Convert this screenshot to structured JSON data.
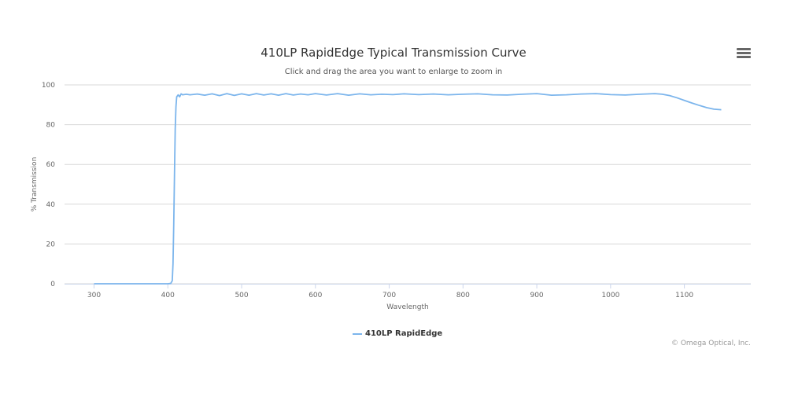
{
  "chart_data": {
    "type": "line",
    "title": "410LP RapidEdge Typical Transmission Curve",
    "subtitle": "Click and drag the area you want to enlarge to zoom in",
    "xlabel": "Wavelength",
    "ylabel": "% Transmission",
    "xlim": [
      260,
      1190
    ],
    "ylim": [
      0,
      100
    ],
    "x_ticks": [
      300,
      400,
      500,
      600,
      700,
      800,
      900,
      1000,
      1100
    ],
    "y_ticks": [
      0,
      20,
      40,
      60,
      80,
      100
    ],
    "grid": "horizontal",
    "legend_position": "bottom-center",
    "series": [
      {
        "name": "410LP RapidEdge",
        "color": "#7cb5ec",
        "x": [
          300,
          350,
          400,
          404,
          406,
          407,
          408,
          409,
          410,
          411,
          412,
          414,
          416,
          418,
          420,
          425,
          430,
          440,
          450,
          460,
          470,
          480,
          490,
          500,
          510,
          520,
          530,
          540,
          550,
          560,
          570,
          580,
          590,
          600,
          615,
          630,
          645,
          660,
          675,
          690,
          705,
          720,
          740,
          760,
          780,
          800,
          820,
          840,
          860,
          880,
          900,
          920,
          940,
          960,
          980,
          1000,
          1020,
          1040,
          1060,
          1070,
          1080,
          1090,
          1100,
          1110,
          1120,
          1130,
          1140,
          1150
        ],
        "y": [
          0,
          0,
          0,
          0.2,
          1.5,
          10,
          30,
          55,
          78,
          89,
          94,
          95,
          94,
          95.5,
          95,
          95.3,
          95,
          95.4,
          94.8,
          95.5,
          94.6,
          95.6,
          94.7,
          95.5,
          94.8,
          95.6,
          94.9,
          95.5,
          94.8,
          95.6,
          94.9,
          95.4,
          95,
          95.6,
          94.9,
          95.6,
          94.8,
          95.5,
          95,
          95.3,
          95.1,
          95.5,
          95.1,
          95.4,
          95,
          95.3,
          95.5,
          95,
          94.9,
          95.3,
          95.6,
          94.8,
          95,
          95.4,
          95.6,
          95.1,
          94.9,
          95.3,
          95.6,
          95.3,
          94.6,
          93.5,
          92.2,
          90.9,
          89.7,
          88.6,
          87.8,
          87.5
        ]
      }
    ]
  },
  "menu_icon": "hamburger-menu-icon",
  "credits": "© Omega Optical, Inc."
}
